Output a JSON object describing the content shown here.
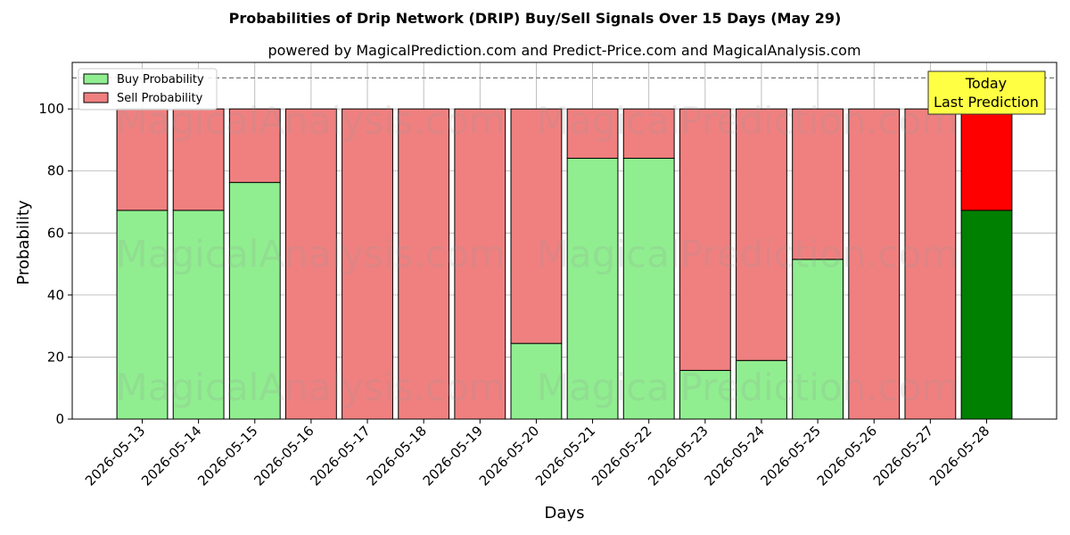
{
  "chart_data": {
    "type": "bar",
    "title": "Probabilities of Drip Network (DRIP) Buy/Sell Signals Over 15 Days (May 29)",
    "subtitle": "powered by MagicalPrediction.com and Predict-Price.com and MagicalAnalysis.com",
    "xlabel": "Days",
    "ylabel": "Probability",
    "ylim": [
      0,
      115
    ],
    "yticks": [
      0,
      20,
      40,
      60,
      80,
      100
    ],
    "reference_line": 110,
    "grid": true,
    "legend_position": "top-left",
    "categories": [
      "2026-05-13",
      "2026-05-14",
      "2026-05-15",
      "2026-05-16",
      "2026-05-17",
      "2026-05-18",
      "2026-05-19",
      "2026-05-20",
      "2026-05-21",
      "2026-05-22",
      "2026-05-23",
      "2026-05-24",
      "2026-05-25",
      "2026-05-26",
      "2026-05-27",
      "2026-05-28"
    ],
    "series": [
      {
        "name": "Buy Probability",
        "color": "#90ee90",
        "highlight_color": "#008000",
        "values": [
          67.3,
          67.3,
          76.3,
          0,
          0,
          0,
          0,
          24.4,
          84.1,
          84.1,
          15.7,
          18.9,
          51.5,
          0,
          0,
          67.3
        ]
      },
      {
        "name": "Sell Probability",
        "color": "#f08080",
        "highlight_color": "#ff0000",
        "values": [
          32.7,
          32.7,
          23.7,
          100,
          100,
          100,
          100,
          75.6,
          15.9,
          15.9,
          84.3,
          81.1,
          48.5,
          100,
          100,
          32.7
        ]
      }
    ],
    "annotation": {
      "line1": "Today",
      "line2": "Last Prediction",
      "color": "#ffff44"
    },
    "watermarks": [
      "MagicalAnalysis.com",
      "MagicalPrediction.com"
    ]
  }
}
